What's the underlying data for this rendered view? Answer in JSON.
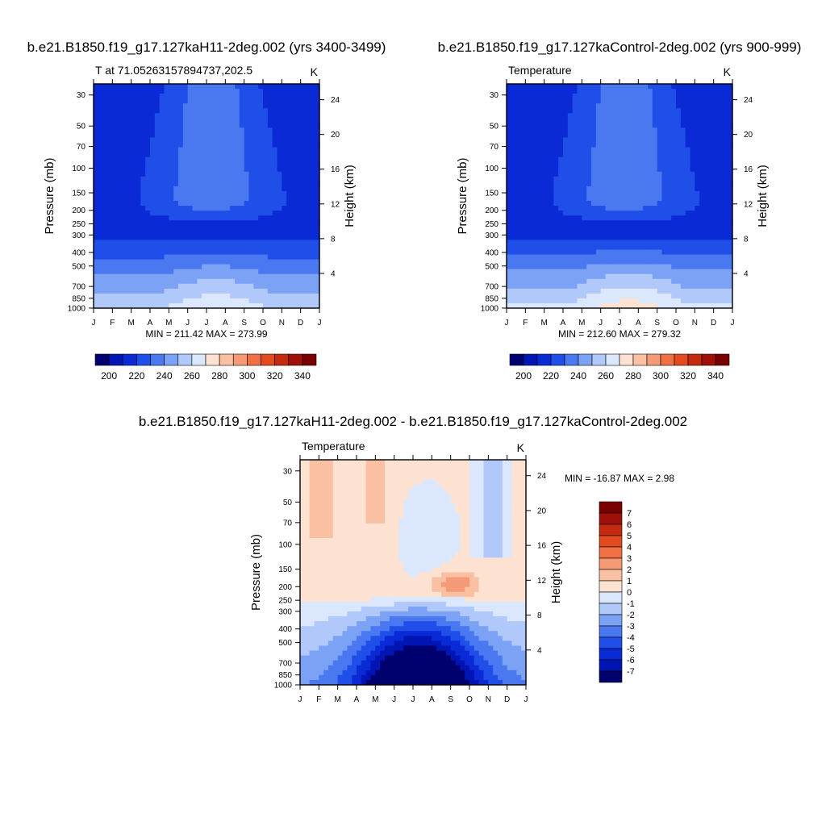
{
  "chart_data": [
    {
      "type": "heatmap",
      "title": "b.e21.B1850.f19_g17.127kaH11-2deg.002 (yrs 3400-3499)",
      "subtitle_left": "T at 71.05263157894737,202.5",
      "units": "K",
      "ylabel": "Pressure (mb)",
      "ylabel_right": "Height (km)",
      "x_ticks": [
        "J",
        "F",
        "M",
        "A",
        "M",
        "J",
        "J",
        "A",
        "S",
        "O",
        "N",
        "D",
        "J"
      ],
      "y_ticks": [
        "30",
        "50",
        "70",
        "100",
        "150",
        "200",
        "250",
        "300",
        "400",
        "500",
        "700",
        "850",
        "1000"
      ],
      "y_ticks_right": [
        "24",
        "20",
        "16",
        "12",
        "8",
        "4"
      ],
      "minmax": "MIN = 211.42   MAX = 273.99",
      "min": 211.42,
      "max": 273.99,
      "colorbar_labels": [
        "200",
        "220",
        "240",
        "260",
        "280",
        "300",
        "320",
        "340"
      ],
      "colorbar_levels": [
        190,
        200,
        210,
        220,
        230,
        240,
        250,
        260,
        270,
        280,
        290,
        300,
        310,
        320,
        330,
        340,
        350
      ],
      "bands": [
        {
          "value": 215,
          "color": "#0a2ad6"
        },
        {
          "value": 225,
          "color": "#204ee8"
        },
        {
          "value": 235,
          "color": "#4a78f0"
        },
        {
          "value": 245,
          "color": "#7ca2f5"
        },
        {
          "value": 255,
          "color": "#b0c8fa"
        },
        {
          "value": 265,
          "color": "#dbe7fd"
        },
        {
          "value": 275,
          "color": "#fde2d2"
        }
      ]
    },
    {
      "type": "heatmap",
      "title": "b.e21.B1850.f19_g17.127kaControl-2deg.002 (yrs 900-999)",
      "subtitle_left": "Temperature",
      "units": "K",
      "ylabel": "Pressure (mb)",
      "ylabel_right": "Height (km)",
      "x_ticks": [
        "J",
        "F",
        "M",
        "A",
        "M",
        "J",
        "J",
        "A",
        "S",
        "O",
        "N",
        "D",
        "J"
      ],
      "y_ticks": [
        "30",
        "50",
        "70",
        "100",
        "150",
        "200",
        "250",
        "300",
        "400",
        "500",
        "700",
        "850",
        "1000"
      ],
      "y_ticks_right": [
        "24",
        "20",
        "16",
        "12",
        "8",
        "4"
      ],
      "minmax": "MIN = 212.60   MAX = 279.32",
      "min": 212.6,
      "max": 279.32,
      "colorbar_labels": [
        "200",
        "220",
        "240",
        "260",
        "280",
        "300",
        "320",
        "340"
      ],
      "colorbar_levels": [
        190,
        200,
        210,
        220,
        230,
        240,
        250,
        260,
        270,
        280,
        290,
        300,
        310,
        320,
        330,
        340,
        350
      ]
    },
    {
      "type": "heatmap",
      "title": "b.e21.B1850.f19_g17.127kaH11-2deg.002 - b.e21.B1850.f19_g17.127kaControl-2deg.002",
      "subtitle_left": "Temperature",
      "units": "K",
      "ylabel": "Pressure (mb)",
      "ylabel_right": "Height (km)",
      "x_ticks": [
        "J",
        "F",
        "M",
        "A",
        "M",
        "J",
        "J",
        "A",
        "S",
        "O",
        "N",
        "D",
        "J"
      ],
      "y_ticks": [
        "30",
        "50",
        "70",
        "100",
        "150",
        "200",
        "250",
        "300",
        "400",
        "500",
        "700",
        "850",
        "1000"
      ],
      "y_ticks_right": [
        "24",
        "20",
        "16",
        "12",
        "8",
        "4"
      ],
      "minmax": "MIN = -16.87   MAX =   2.98",
      "min": -16.87,
      "max": 2.98,
      "colorbar_labels": [
        "7",
        "6",
        "5",
        "4",
        "3",
        "2",
        "1",
        "0",
        "-1",
        "-2",
        "-3",
        "-4",
        "-5",
        "-6",
        "-7"
      ],
      "colorbar_levels": [
        -8,
        -7,
        -6,
        -5,
        -4,
        -3,
        -2,
        -1,
        0,
        1,
        2,
        3,
        4,
        5,
        6,
        7,
        8
      ]
    }
  ],
  "colors": {
    "t_levels": [
      "#00006e",
      "#0015b4",
      "#0a2ad6",
      "#204ee8",
      "#4a78f0",
      "#7ca2f5",
      "#b0c8fa",
      "#dbe7fd",
      "#fde2d2",
      "#f9c0a2",
      "#f59a76",
      "#f07044",
      "#e34a20",
      "#c42a10",
      "#a01008",
      "#7a0000"
    ],
    "d_levels": [
      "#00006e",
      "#0015b4",
      "#0a2ad6",
      "#204ee8",
      "#4a78f0",
      "#7ca2f5",
      "#b0c8fa",
      "#dbe7fd",
      "#fde2d2",
      "#f9c0a2",
      "#f59a76",
      "#f07044",
      "#e34a20",
      "#c42a10",
      "#a01008",
      "#7a0000"
    ]
  }
}
